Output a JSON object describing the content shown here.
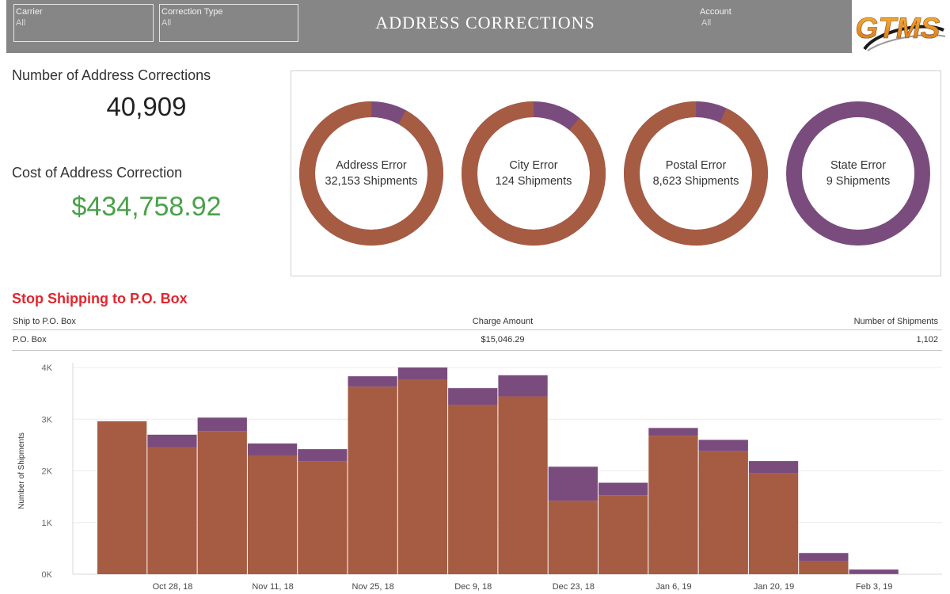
{
  "header": {
    "title": "ADDRESS CORRECTIONS",
    "filters": {
      "carrier": {
        "label": "Carrier",
        "value": "All"
      },
      "correction_type": {
        "label": "Correction Type",
        "value": "All"
      },
      "account": {
        "label": "Account",
        "value": "All"
      }
    },
    "logo_text": "GTMS"
  },
  "kpis": {
    "count_label": "Number of Address Corrections",
    "count_value": "40,909",
    "cost_label": "Cost of Address Correction",
    "cost_value": "$434,758.92"
  },
  "colors": {
    "primary": "#a65c42",
    "secondary": "#7a4c7d",
    "cost_green": "#4aa14a",
    "section_red": "#e2252e"
  },
  "donuts": [
    {
      "name": "Address Error",
      "count_label": "32,153 Shipments",
      "main_fraction": 0.92
    },
    {
      "name": "City Error",
      "count_label": "124 Shipments",
      "main_fraction": 0.89
    },
    {
      "name": "Postal Error",
      "count_label": "8,623 Shipments",
      "main_fraction": 0.93
    },
    {
      "name": "State Error",
      "count_label": "9 Shipments",
      "main_fraction": 0.0
    }
  ],
  "pobox": {
    "title": "Stop Shipping to P.O. Box",
    "columns": [
      "Ship to P.O. Box",
      "Charge Amount",
      "Number of Shipments"
    ],
    "rows": [
      [
        "P.O. Box",
        "$15,046.29",
        "1,102"
      ]
    ]
  },
  "chart_data": {
    "type": "bar",
    "stacked": true,
    "ylabel": "Number of Shipments",
    "xlabel": "",
    "yticks": [
      "0K",
      "1K",
      "2K",
      "3K",
      "4K"
    ],
    "ylim": [
      0,
      4100
    ],
    "x_tick_labels": [
      "Oct 28, 18",
      "Nov 11, 18",
      "Nov 25, 18",
      "Dec 9, 18",
      "Dec 23, 18",
      "Jan 6, 19",
      "Jan 20, 19",
      "Feb 3, 19"
    ],
    "categories": [
      "Oct 21, 18",
      "Oct 28, 18",
      "Nov 4, 18",
      "Nov 11, 18",
      "Nov 18, 18",
      "Nov 25, 18",
      "Dec 2, 18",
      "Dec 9, 18",
      "Dec 16, 18",
      "Dec 23, 18",
      "Dec 30, 18",
      "Jan 6, 19",
      "Jan 13, 19",
      "Jan 20, 19",
      "Jan 27, 19",
      "Feb 3, 19"
    ],
    "series": [
      {
        "values": [
          2960,
          2460,
          2770,
          2290,
          2190,
          3630,
          3760,
          3280,
          3440,
          1420,
          1530,
          2680,
          2380,
          1950,
          260,
          10
        ]
      },
      {
        "values": [
          0,
          240,
          260,
          240,
          230,
          200,
          240,
          320,
          410,
          660,
          240,
          150,
          220,
          240,
          150,
          80
        ]
      }
    ]
  }
}
